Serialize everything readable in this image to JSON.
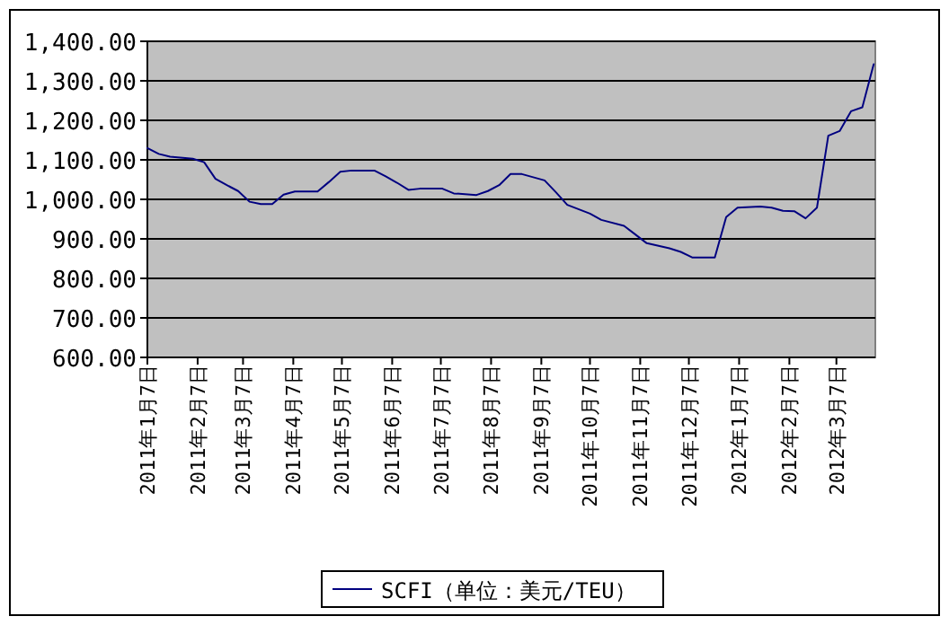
{
  "chart_data": {
    "type": "line",
    "x": [
      "2011-01-07",
      "2011-01-14",
      "2011-01-21",
      "2011-02-04",
      "2011-02-11",
      "2011-02-18",
      "2011-02-25",
      "2011-03-04",
      "2011-03-11",
      "2011-03-18",
      "2011-03-25",
      "2011-04-01",
      "2011-04-08",
      "2011-04-22",
      "2011-04-29",
      "2011-05-06",
      "2011-05-13",
      "2011-05-27",
      "2011-06-03",
      "2011-06-10",
      "2011-06-17",
      "2011-06-24",
      "2011-07-08",
      "2011-07-15",
      "2011-07-29",
      "2011-08-05",
      "2011-08-12",
      "2011-08-19",
      "2011-08-26",
      "2011-09-09",
      "2011-09-16",
      "2011-09-23",
      "2011-10-07",
      "2011-10-14",
      "2011-10-28",
      "2011-11-04",
      "2011-11-11",
      "2011-11-25",
      "2011-12-02",
      "2011-12-09",
      "2011-12-23",
      "2011-12-30",
      "2012-01-06",
      "2012-01-20",
      "2012-01-27",
      "2012-02-03",
      "2012-02-10",
      "2012-02-17",
      "2012-02-24",
      "2012-03-02",
      "2012-03-09",
      "2012-03-16",
      "2012-03-23",
      "2012-03-30"
    ],
    "series": [
      {
        "name": "SCFI（单位：美元/TEU）",
        "color": "#000080",
        "values": [
          1130,
          1115,
          1108,
          1103,
          1094,
          1052,
          1036,
          1021,
          994,
          988,
          988,
          1012,
          1020,
          1020,
          1044,
          1070,
          1073,
          1073,
          1058,
          1042,
          1024,
          1027,
          1027,
          1015,
          1011,
          1021,
          1036,
          1064,
          1064,
          1048,
          1018,
          986,
          964,
          948,
          933,
          911,
          889,
          876,
          867,
          853,
          853,
          955,
          979,
          982,
          979,
          971,
          970,
          952,
          979,
          1161,
          1173,
          1223,
          1233,
          1342
        ]
      }
    ],
    "xlim": [
      "2011-01-07",
      "2012-03-31"
    ],
    "xticks": [
      {
        "value": "2011-01-07",
        "label": "2011年1月7日"
      },
      {
        "value": "2011-02-07",
        "label": "2011年2月7日"
      },
      {
        "value": "2011-03-07",
        "label": "2011年3月7日"
      },
      {
        "value": "2011-04-07",
        "label": "2011年4月7日"
      },
      {
        "value": "2011-05-07",
        "label": "2011年5月7日"
      },
      {
        "value": "2011-06-07",
        "label": "2011年6月7日"
      },
      {
        "value": "2011-07-07",
        "label": "2011年7月7日"
      },
      {
        "value": "2011-08-07",
        "label": "2011年8月7日"
      },
      {
        "value": "2011-09-07",
        "label": "2011年9月7日"
      },
      {
        "value": "2011-10-07",
        "label": "2011年10月7日"
      },
      {
        "value": "2011-11-07",
        "label": "2011年11月7日"
      },
      {
        "value": "2011-12-07",
        "label": "2011年12月7日"
      },
      {
        "value": "2012-01-07",
        "label": "2012年1月7日"
      },
      {
        "value": "2012-02-07",
        "label": "2012年2月7日"
      },
      {
        "value": "2012-03-07",
        "label": "2012年3月7日"
      }
    ],
    "ylim": [
      600,
      1400
    ],
    "yticks": [
      {
        "value": 600,
        "label": "600.00"
      },
      {
        "value": 700,
        "label": "700.00"
      },
      {
        "value": 800,
        "label": "800.00"
      },
      {
        "value": 900,
        "label": "900.00"
      },
      {
        "value": 1000,
        "label": "1,000.00"
      },
      {
        "value": 1100,
        "label": "1,100.00"
      },
      {
        "value": 1200,
        "label": "1,200.00"
      },
      {
        "value": 1300,
        "label": "1,300.00"
      },
      {
        "value": 1400,
        "label": "1,400.00"
      }
    ],
    "grid": "y",
    "legend": "bottom",
    "marker": "none",
    "line_style": "solid"
  }
}
